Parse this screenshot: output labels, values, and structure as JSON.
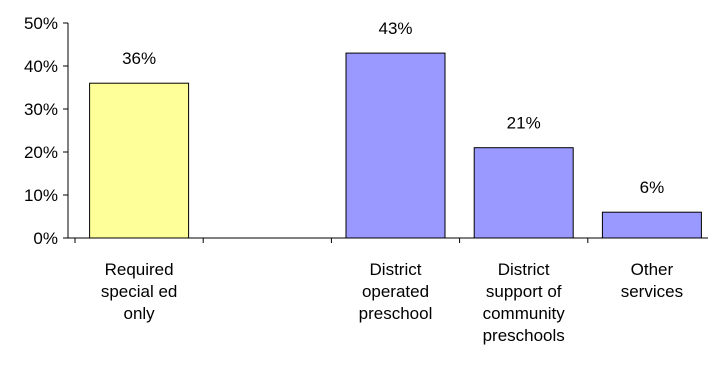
{
  "chart_data": {
    "type": "bar",
    "categories": [
      [
        "Required",
        "special ed",
        "only"
      ],
      [],
      [
        "District",
        "operated",
        "preschool"
      ],
      [
        "District",
        "support of",
        "community",
        "preschools"
      ],
      [
        "Other",
        "services"
      ]
    ],
    "values": [
      36,
      null,
      43,
      21,
      6
    ],
    "data_labels": [
      "36%",
      "",
      "43%",
      "21%",
      "6%"
    ],
    "bar_colors": [
      "#FFFF99",
      "",
      "#9999FF",
      "#9999FF",
      "#9999FF"
    ],
    "ylim": [
      0,
      50
    ],
    "yticks": [
      0,
      10,
      20,
      30,
      40,
      50
    ],
    "ytick_labels": [
      "0%",
      "10%",
      "20%",
      "30%",
      "40%",
      "50%"
    ],
    "grid": false,
    "title": "",
    "xlabel": "",
    "ylabel": ""
  }
}
